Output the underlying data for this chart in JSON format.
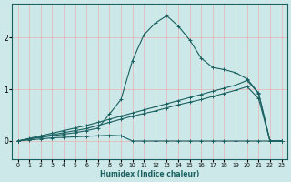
{
  "xlabel": "Humidex (Indice chaleur)",
  "xlim": [
    -0.5,
    23.5
  ],
  "ylim": [
    -0.35,
    2.65
  ],
  "yticks": [
    0,
    1,
    2
  ],
  "xticks": [
    0,
    1,
    2,
    3,
    4,
    5,
    6,
    7,
    8,
    9,
    10,
    11,
    12,
    13,
    14,
    15,
    16,
    17,
    18,
    19,
    20,
    21,
    22,
    23
  ],
  "bg_color": "#cce8e8",
  "line_color": "#1a6060",
  "grid_color": "#ff8888",
  "line_width": 0.8,
  "marker": "+",
  "marker_size": 3,
  "lines": [
    {
      "x": [
        0,
        1,
        2,
        3,
        4,
        5,
        6,
        7,
        8,
        9,
        10,
        11,
        12,
        13,
        14,
        15,
        16,
        17,
        18,
        19,
        20,
        21,
        22,
        23
      ],
      "y": [
        0.0,
        0.02,
        0.04,
        0.06,
        0.07,
        0.08,
        0.09,
        0.1,
        0.11,
        0.1,
        0.0,
        0.0,
        0.0,
        0.0,
        0.0,
        0.0,
        0.0,
        0.0,
        0.0,
        0.0,
        0.0,
        0.0,
        0.0,
        0.0
      ]
    },
    {
      "x": [
        0,
        1,
        2,
        3,
        4,
        5,
        6,
        7,
        8,
        9,
        10,
        11,
        12,
        13,
        14,
        15,
        16,
        17,
        18,
        19,
        20,
        21,
        22,
        23
      ],
      "y": [
        0.0,
        0.04,
        0.07,
        0.1,
        0.13,
        0.16,
        0.2,
        0.25,
        0.52,
        0.8,
        1.55,
        2.05,
        2.28,
        2.42,
        2.22,
        1.95,
        1.6,
        1.42,
        1.38,
        1.32,
        1.2,
        0.93,
        0.0,
        0.0
      ]
    },
    {
      "x": [
        0,
        1,
        2,
        3,
        4,
        5,
        6,
        7,
        8,
        9,
        10,
        11,
        12,
        13,
        14,
        15,
        16,
        17,
        18,
        19,
        20,
        21,
        22,
        23
      ],
      "y": [
        0.0,
        0.05,
        0.1,
        0.15,
        0.2,
        0.25,
        0.3,
        0.36,
        0.42,
        0.48,
        0.54,
        0.6,
        0.66,
        0.72,
        0.78,
        0.84,
        0.9,
        0.96,
        1.02,
        1.08,
        1.17,
        0.92,
        0.0,
        0.0
      ]
    },
    {
      "x": [
        0,
        1,
        2,
        3,
        4,
        5,
        6,
        7,
        8,
        9,
        10,
        11,
        12,
        13,
        14,
        15,
        16,
        17,
        18,
        19,
        20,
        21,
        22,
        23
      ],
      "y": [
        0.0,
        0.04,
        0.08,
        0.12,
        0.16,
        0.2,
        0.24,
        0.3,
        0.36,
        0.42,
        0.48,
        0.53,
        0.58,
        0.64,
        0.7,
        0.75,
        0.8,
        0.86,
        0.92,
        0.98,
        1.05,
        0.82,
        0.0,
        0.0
      ]
    }
  ]
}
